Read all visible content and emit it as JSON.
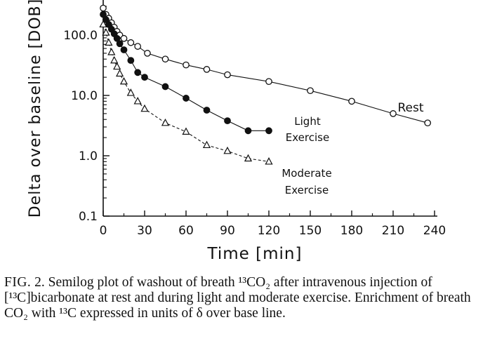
{
  "chart_data": {
    "type": "scatter",
    "xlabel": "Time [min]",
    "ylabel": "Delta over baseline [DOB]",
    "yscale": "log",
    "xlim": [
      0,
      240
    ],
    "ylim": [
      0.1,
      300
    ],
    "x_ticks": [
      0,
      30,
      60,
      90,
      120,
      150,
      180,
      210,
      240
    ],
    "y_ticks": [
      {
        "value": 0.1,
        "label": "0.1"
      },
      {
        "value": 1,
        "label": "1.0"
      },
      {
        "value": 10,
        "label": "10.0"
      },
      {
        "value": 100,
        "label": "100.0"
      }
    ],
    "grid": false,
    "series": [
      {
        "name": "Rest",
        "marker": "circle-open",
        "labels": [
          "Rest"
        ],
        "points": [
          [
            0,
            280
          ],
          [
            2,
            220
          ],
          [
            4,
            190
          ],
          [
            6,
            160
          ],
          [
            8,
            135
          ],
          [
            10,
            115
          ],
          [
            12,
            100
          ],
          [
            15,
            88
          ],
          [
            20,
            75
          ],
          [
            25,
            65
          ],
          [
            32,
            50
          ],
          [
            45,
            40
          ],
          [
            60,
            32
          ],
          [
            75,
            27
          ],
          [
            90,
            22
          ],
          [
            120,
            17
          ],
          [
            150,
            12
          ],
          [
            180,
            8
          ],
          [
            210,
            5
          ],
          [
            235,
            3.5
          ]
        ]
      },
      {
        "name": "Light Exercise",
        "marker": "circle-filled",
        "labels": [
          "Light",
          "Exercise"
        ],
        "points": [
          [
            0,
            220
          ],
          [
            2,
            180
          ],
          [
            4,
            150
          ],
          [
            6,
            125
          ],
          [
            8,
            105
          ],
          [
            10,
            88
          ],
          [
            12,
            72
          ],
          [
            15,
            57
          ],
          [
            20,
            38
          ],
          [
            25,
            24
          ],
          [
            30,
            20
          ],
          [
            45,
            14
          ],
          [
            60,
            9
          ],
          [
            75,
            5.7
          ],
          [
            90,
            3.8
          ],
          [
            105,
            2.6
          ],
          [
            120,
            2.6
          ]
        ]
      },
      {
        "name": "Moderate Exercise",
        "marker": "triangle-open",
        "labels": [
          "Moderate",
          "Exercise"
        ],
        "points": [
          [
            0,
            150
          ],
          [
            2,
            110
          ],
          [
            4,
            75
          ],
          [
            6,
            52
          ],
          [
            8,
            38
          ],
          [
            10,
            30
          ],
          [
            12,
            23
          ],
          [
            15,
            17
          ],
          [
            20,
            11
          ],
          [
            25,
            8
          ],
          [
            30,
            6
          ],
          [
            45,
            3.5
          ],
          [
            60,
            2.5
          ],
          [
            75,
            1.5
          ],
          [
            90,
            1.2
          ],
          [
            105,
            0.9
          ],
          [
            120,
            0.8
          ]
        ]
      }
    ]
  },
  "caption": {
    "fig_label": "FIG.",
    "text": " 2. Semilog plot of washout of breath ¹³CO₂ after intravenous injection of [¹³C]bicarbonate at rest and during light and moderate exercise. Enrichment of breath CO₂ with ¹³C expressed in units of δ over base line."
  }
}
